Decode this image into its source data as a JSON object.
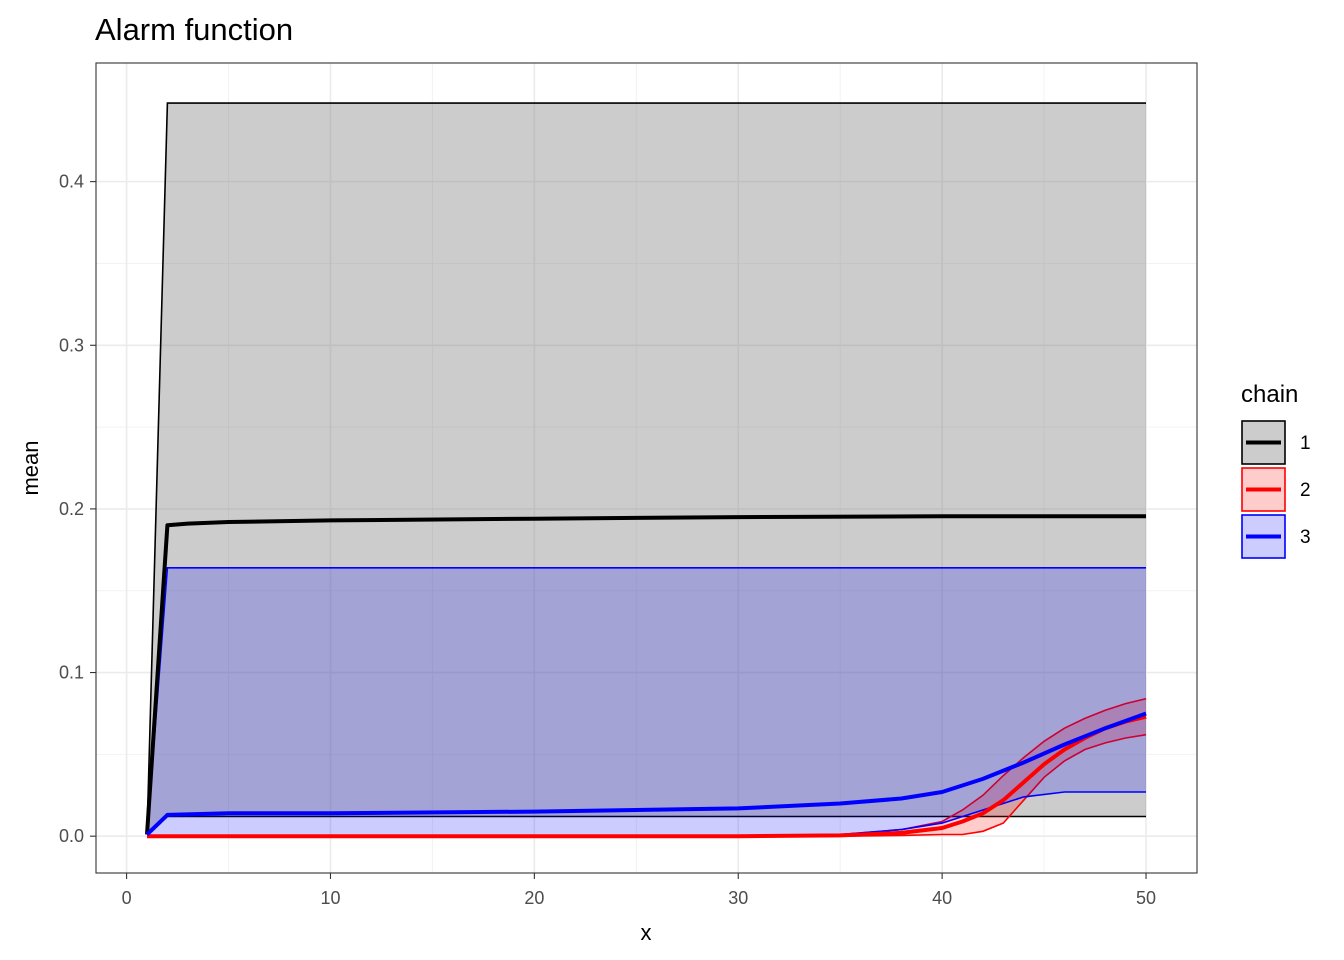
{
  "chart_data": {
    "type": "line",
    "title": "Alarm function",
    "xlabel": "x",
    "ylabel": "mean",
    "xlim": [
      -1.5,
      52.5
    ],
    "ylim": [
      -0.0225,
      0.4725
    ],
    "x_ticks": [
      0,
      10,
      20,
      30,
      40,
      50
    ],
    "x_tick_labels": [
      "0",
      "10",
      "20",
      "30",
      "40",
      "50"
    ],
    "y_ticks": [
      0.0,
      0.1,
      0.2,
      0.3,
      0.4
    ],
    "y_tick_labels": [
      "0.0",
      "0.1",
      "0.2",
      "0.3",
      "0.4"
    ],
    "grid": true,
    "legend": {
      "title": "chain",
      "position": "right"
    },
    "series": [
      {
        "name": "1",
        "color": "#000000",
        "fill": "#808080",
        "fill_opacity": 0.4,
        "x": [
          1,
          2,
          3,
          5,
          10,
          20,
          30,
          40,
          50
        ],
        "mean": [
          0.001,
          0.19,
          0.191,
          0.192,
          0.193,
          0.194,
          0.195,
          0.1955,
          0.1955
        ],
        "lower": [
          0.001,
          0.012,
          0.012,
          0.012,
          0.012,
          0.012,
          0.012,
          0.012,
          0.012
        ],
        "upper": [
          0.001,
          0.448,
          0.448,
          0.448,
          0.448,
          0.448,
          0.448,
          0.448,
          0.448
        ]
      },
      {
        "name": "2",
        "color": "#ff0000",
        "fill": "#ff0000",
        "fill_opacity": 0.2,
        "x": [
          1,
          5,
          10,
          20,
          30,
          35,
          38,
          40,
          41,
          42,
          43,
          44,
          45,
          46,
          47,
          48,
          49,
          50
        ],
        "mean": [
          0.0,
          0.0,
          0.0,
          0.0,
          0.0,
          0.0005,
          0.002,
          0.005,
          0.009,
          0.014,
          0.022,
          0.033,
          0.044,
          0.053,
          0.06,
          0.066,
          0.07,
          0.073
        ],
        "lower": [
          0.0,
          0.0,
          0.0,
          0.0,
          0.0,
          0.0,
          0.0005,
          0.001,
          0.001,
          0.003,
          0.008,
          0.022,
          0.036,
          0.046,
          0.053,
          0.057,
          0.06,
          0.062
        ],
        "upper": [
          0.0,
          0.0,
          0.0,
          0.0,
          0.0,
          0.001,
          0.004,
          0.009,
          0.016,
          0.025,
          0.037,
          0.048,
          0.058,
          0.066,
          0.072,
          0.077,
          0.081,
          0.084
        ]
      },
      {
        "name": "3",
        "color": "#0000ff",
        "fill": "#0000ff",
        "fill_opacity": 0.2,
        "x": [
          1,
          2,
          5,
          10,
          20,
          30,
          35,
          38,
          40,
          42,
          44,
          46,
          48,
          50
        ],
        "mean": [
          0.001,
          0.013,
          0.014,
          0.014,
          0.015,
          0.017,
          0.02,
          0.023,
          0.027,
          0.035,
          0.045,
          0.056,
          0.066,
          0.075
        ],
        "lower": [
          0.0,
          0.0,
          0.0,
          0.0,
          0.0,
          0.0005,
          0.001,
          0.004,
          0.008,
          0.016,
          0.024,
          0.027,
          0.027,
          0.027
        ],
        "upper": [
          0.001,
          0.164,
          0.164,
          0.164,
          0.164,
          0.164,
          0.164,
          0.164,
          0.164,
          0.164,
          0.164,
          0.164,
          0.164,
          0.164
        ]
      }
    ]
  }
}
